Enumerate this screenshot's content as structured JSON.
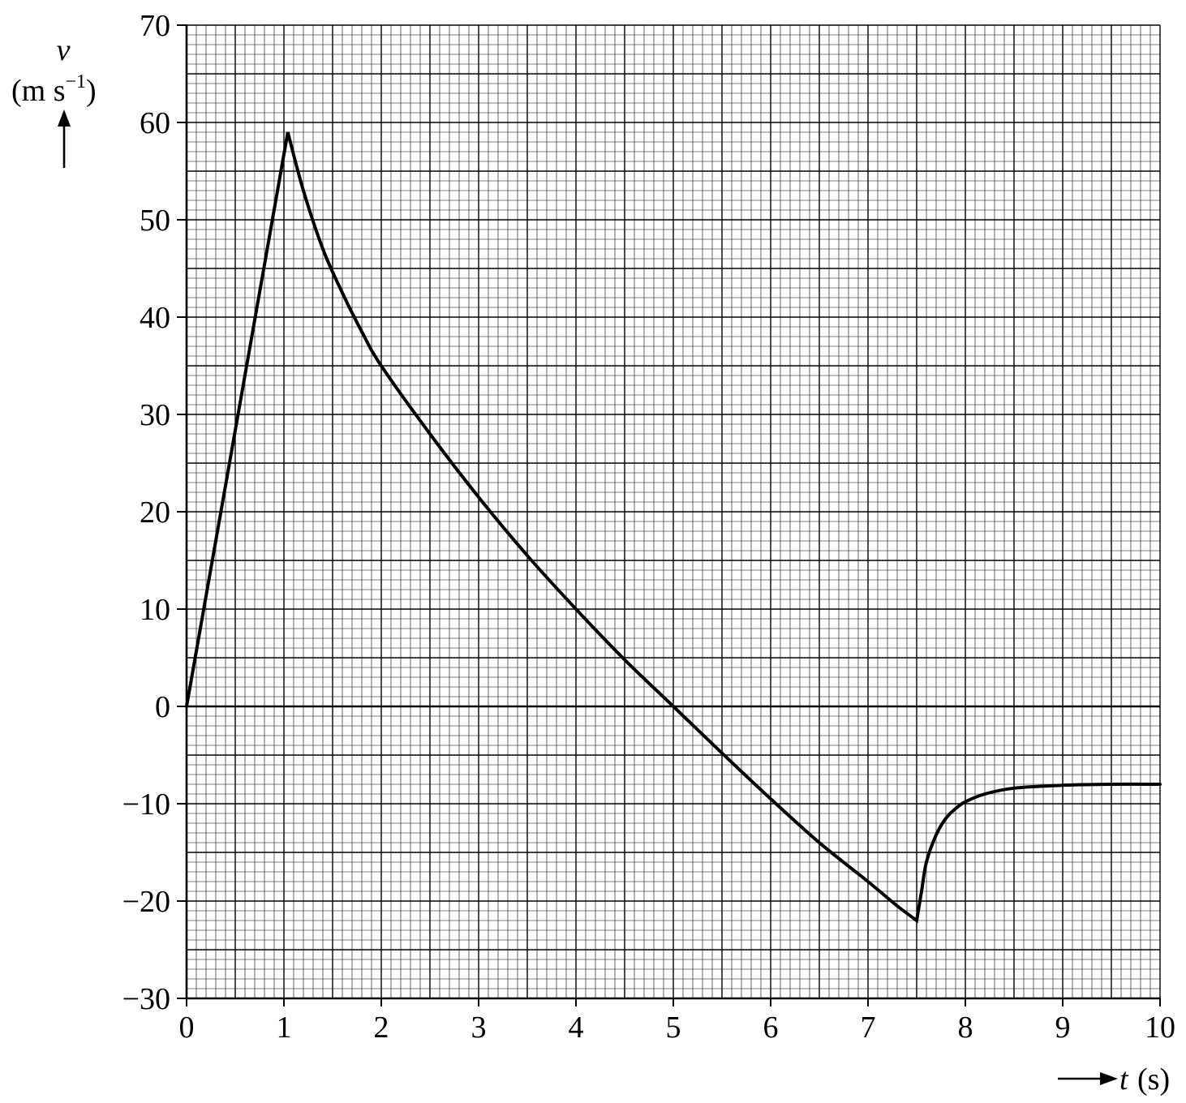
{
  "chart_data": {
    "type": "line",
    "title": "",
    "xlabel": {
      "symbol": "t",
      "unit": "(s)"
    },
    "ylabel": {
      "symbol": "v",
      "unit_base": "(m s",
      "unit_exp": "−1",
      "unit_close": ")"
    },
    "xlim": [
      0,
      10
    ],
    "ylim": [
      -30,
      70
    ],
    "x_ticks": [
      "0",
      "1",
      "2",
      "3",
      "4",
      "5",
      "6",
      "7",
      "8",
      "9",
      "10"
    ],
    "y_ticks": [
      "70",
      "60",
      "50",
      "40",
      "30",
      "20",
      "10",
      "0",
      "−10",
      "−20",
      "−30"
    ],
    "grid": true,
    "grid_minor_step": {
      "x": 0.1,
      "y": 1
    },
    "grid_major_step": {
      "x": 0.5,
      "y": 5
    },
    "legend": "none",
    "colors": {
      "line": "#000000",
      "grid": "#000000",
      "background": "#ffffff"
    },
    "series": [
      {
        "x": [
          0,
          1.04,
          1.2,
          1.4,
          1.6,
          1.8,
          2.0,
          2.5,
          3.0,
          3.5,
          4.0,
          4.5,
          5.0,
          5.5,
          6.0,
          6.5,
          7.0,
          7.3,
          7.5,
          7.55,
          7.6,
          7.7,
          7.8,
          7.9,
          8.0,
          8.2,
          8.5,
          9.0,
          9.5,
          10.0
        ],
        "y": [
          0,
          59,
          53,
          47,
          42.5,
          38.5,
          35,
          28,
          21.5,
          15.5,
          10,
          4.8,
          0,
          -4.8,
          -9.5,
          -14,
          -18,
          -20.5,
          -22,
          -19,
          -16,
          -13.2,
          -11.5,
          -10.5,
          -9.8,
          -9,
          -8.4,
          -8.1,
          -8.0,
          -8.0
        ]
      }
    ]
  }
}
